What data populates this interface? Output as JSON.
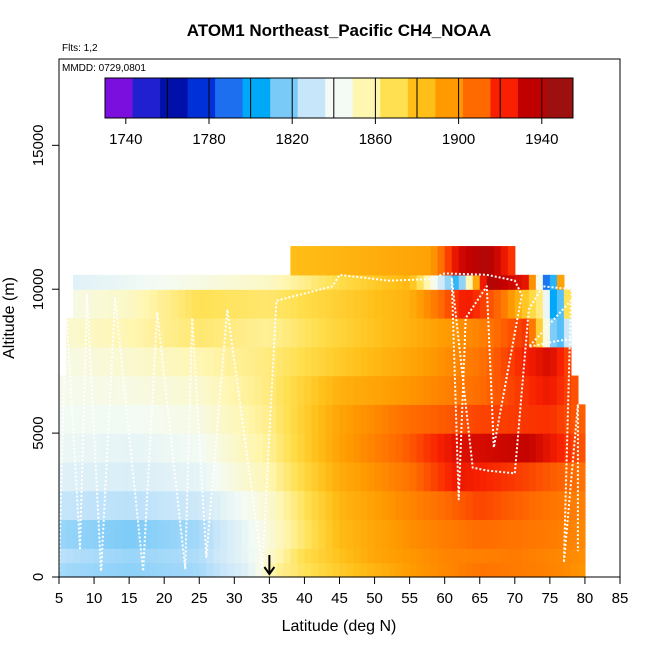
{
  "chart_data": {
    "type": "heatmap",
    "title": "ATOM1 Northeast_Pacific CH4_NOAA",
    "flights_label": "Flts: 1,2",
    "date_label": "MMDD: 0729,0801",
    "xlabel": "Latitude (deg N)",
    "ylabel": "Altitude (m)",
    "xlim": [
      5,
      85
    ],
    "ylim": [
      0,
      18000
    ],
    "x_ticks": [
      5,
      10,
      15,
      20,
      25,
      30,
      35,
      40,
      45,
      50,
      55,
      60,
      65,
      70,
      75,
      80,
      85
    ],
    "y_ticks": [
      0,
      5000,
      10000,
      15000
    ],
    "colorbar": {
      "range": [
        1730,
        1955
      ],
      "ticks": [
        1740,
        1780,
        1820,
        1860,
        1900,
        1940
      ],
      "colors": [
        "#7B10DE",
        "#2020D0",
        "#0010A8",
        "#0030D8",
        "#1E6FF0",
        "#00A8F8",
        "#7ACAF8",
        "#C8E6FA",
        "#F4FBF4",
        "#FFF6B0",
        "#FFE050",
        "#FFBF18",
        "#FF9A00",
        "#FF6A00",
        "#F82000",
        "#C00000",
        "#9E1010"
      ]
    },
    "marker": {
      "latitude": 35,
      "label": "arrow"
    },
    "layers": [
      {
        "alt": [
          0,
          500
        ],
        "lat": [
          5,
          80
        ],
        "points": [
          [
            5,
            1822
          ],
          [
            15,
            1818
          ],
          [
            25,
            1822
          ],
          [
            32,
            1836
          ],
          [
            36,
            1860
          ],
          [
            45,
            1880
          ],
          [
            55,
            1898
          ],
          [
            65,
            1910
          ],
          [
            75,
            1906
          ],
          [
            80,
            1900
          ]
        ]
      },
      {
        "alt": [
          500,
          1000
        ],
        "lat": [
          5,
          80
        ],
        "points": [
          [
            5,
            1826
          ],
          [
            15,
            1820
          ],
          [
            25,
            1824
          ],
          [
            33,
            1842
          ],
          [
            40,
            1872
          ],
          [
            50,
            1894
          ],
          [
            60,
            1905
          ],
          [
            70,
            1908
          ],
          [
            80,
            1902
          ]
        ]
      },
      {
        "alt": [
          1000,
          2000
        ],
        "lat": [
          5,
          80
        ],
        "points": [
          [
            5,
            1820
          ],
          [
            15,
            1815
          ],
          [
            25,
            1822
          ],
          [
            35,
            1848
          ],
          [
            45,
            1886
          ],
          [
            55,
            1902
          ],
          [
            65,
            1912
          ],
          [
            75,
            1908
          ],
          [
            80,
            1904
          ]
        ]
      },
      {
        "alt": [
          2000,
          3000
        ],
        "lat": [
          5,
          80
        ],
        "points": [
          [
            5,
            1828
          ],
          [
            15,
            1826
          ],
          [
            25,
            1830
          ],
          [
            35,
            1850
          ],
          [
            45,
            1888
          ],
          [
            55,
            1905
          ],
          [
            65,
            1920
          ],
          [
            75,
            1910
          ],
          [
            80,
            1906
          ]
        ]
      },
      {
        "alt": [
          3000,
          4000
        ],
        "lat": [
          5,
          80
        ],
        "points": [
          [
            5,
            1836
          ],
          [
            15,
            1834
          ],
          [
            25,
            1838
          ],
          [
            35,
            1856
          ],
          [
            45,
            1892
          ],
          [
            55,
            1910
          ],
          [
            62,
            1930
          ],
          [
            70,
            1922
          ],
          [
            80,
            1910
          ]
        ]
      },
      {
        "alt": [
          4000,
          5000
        ],
        "lat": [
          5,
          80
        ],
        "points": [
          [
            5,
            1840
          ],
          [
            15,
            1838
          ],
          [
            25,
            1842
          ],
          [
            35,
            1860
          ],
          [
            45,
            1896
          ],
          [
            55,
            1916
          ],
          [
            62,
            1934
          ],
          [
            72,
            1940
          ],
          [
            80,
            1916
          ]
        ]
      },
      {
        "alt": [
          5000,
          6000
        ],
        "lat": [
          5,
          80
        ],
        "points": [
          [
            5,
            1842
          ],
          [
            15,
            1842
          ],
          [
            25,
            1846
          ],
          [
            35,
            1862
          ],
          [
            45,
            1895
          ],
          [
            55,
            1912
          ],
          [
            65,
            1920
          ],
          [
            75,
            1924
          ],
          [
            80,
            1914
          ]
        ]
      },
      {
        "alt": [
          6000,
          7000
        ],
        "lat": [
          5,
          79
        ],
        "points": [
          [
            5,
            1844
          ],
          [
            15,
            1846
          ],
          [
            25,
            1850
          ],
          [
            35,
            1864
          ],
          [
            45,
            1890
          ],
          [
            55,
            1900
          ],
          [
            65,
            1912
          ],
          [
            75,
            1930
          ],
          [
            79,
            1916
          ]
        ]
      },
      {
        "alt": [
          7000,
          8000
        ],
        "lat": [
          6,
          78
        ],
        "points": [
          [
            6,
            1846
          ],
          [
            15,
            1850
          ],
          [
            25,
            1856
          ],
          [
            35,
            1864
          ],
          [
            45,
            1880
          ],
          [
            55,
            1894
          ],
          [
            65,
            1910
          ],
          [
            75,
            1936
          ],
          [
            78,
            1918
          ]
        ]
      },
      {
        "alt": [
          8000,
          9000
        ],
        "lat": [
          6,
          78
        ],
        "points": [
          [
            6,
            1850
          ],
          [
            15,
            1856
          ],
          [
            25,
            1866
          ],
          [
            35,
            1860
          ],
          [
            45,
            1876
          ],
          [
            55,
            1890
          ],
          [
            65,
            1906
          ],
          [
            72,
            1924
          ],
          [
            76,
            1800
          ],
          [
            78,
            1840
          ]
        ]
      },
      {
        "alt": [
          9000,
          10000
        ],
        "lat": [
          7,
          78
        ],
        "points": [
          [
            7,
            1846
          ],
          [
            15,
            1852
          ],
          [
            25,
            1870
          ],
          [
            35,
            1866
          ],
          [
            45,
            1878
          ],
          [
            55,
            1890
          ],
          [
            63,
            1930
          ],
          [
            68,
            1912
          ],
          [
            74,
            1860
          ],
          [
            76,
            1780
          ],
          [
            78,
            1900
          ]
        ]
      },
      {
        "alt": [
          10000,
          10500
        ],
        "lat": [
          7,
          77
        ],
        "points": [
          [
            7,
            1836
          ],
          [
            15,
            1840
          ],
          [
            25,
            1846
          ],
          [
            35,
            1852
          ],
          [
            45,
            1872
          ],
          [
            55,
            1888
          ],
          [
            62,
            1800
          ],
          [
            66,
            1948
          ],
          [
            72,
            1930
          ],
          [
            75,
            1760
          ],
          [
            77,
            1940
          ]
        ]
      },
      {
        "alt": [
          10500,
          11500
        ],
        "lat": [
          38,
          70
        ],
        "points": [
          [
            38,
            1885
          ],
          [
            48,
            1890
          ],
          [
            58,
            1896
          ],
          [
            62,
            1936
          ],
          [
            66,
            1948
          ],
          [
            70,
            1920
          ]
        ]
      }
    ],
    "flight_track": [
      [
        5,
        200
      ],
      [
        6,
        9500
      ],
      [
        8,
        1000
      ],
      [
        9,
        9800
      ],
      [
        11,
        200
      ],
      [
        13,
        9700
      ],
      [
        17,
        200
      ],
      [
        19,
        9200
      ],
      [
        23,
        300
      ],
      [
        24,
        9000
      ],
      [
        26,
        700
      ],
      [
        29,
        9300
      ],
      [
        34,
        300
      ],
      [
        36,
        9600
      ],
      [
        44,
        10100
      ],
      [
        45,
        10500
      ],
      [
        52,
        10300
      ],
      [
        58,
        10350
      ],
      [
        60,
        10550
      ],
      [
        66,
        10500
      ],
      [
        70,
        10300
      ],
      [
        71,
        9800
      ],
      [
        67,
        4500
      ],
      [
        66,
        10100
      ],
      [
        63,
        9000
      ],
      [
        62,
        2700
      ],
      [
        61,
        10400
      ],
      [
        64,
        3800
      ],
      [
        66,
        3700
      ],
      [
        70,
        3600
      ],
      [
        72,
        9300
      ],
      [
        74,
        10100
      ],
      [
        78,
        10000
      ],
      [
        79,
        8300
      ],
      [
        76,
        8200
      ],
      [
        72,
        8000
      ],
      [
        78,
        9600
      ],
      [
        77,
        500
      ],
      [
        79,
        6000
      ],
      [
        79,
        900
      ]
    ]
  }
}
